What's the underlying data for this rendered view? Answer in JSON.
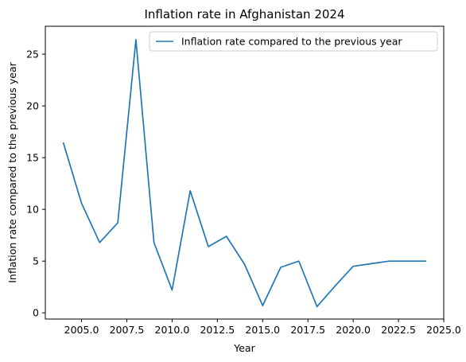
{
  "chart_data": {
    "type": "line",
    "title": "Inflation rate in Afghanistan 2024",
    "xlabel": "Year",
    "ylabel": "Inflation rate compared to the previous year",
    "xlim": [
      2003.0,
      2025.0
    ],
    "ylim": [
      -0.6,
      27.7
    ],
    "xticks": [
      2005.0,
      2007.5,
      2010.0,
      2012.5,
      2015.0,
      2017.5,
      2020.0,
      2022.5,
      2025.0
    ],
    "xtick_labels": [
      "2005.0",
      "2007.5",
      "2010.0",
      "2012.5",
      "2015.0",
      "2017.5",
      "2020.0",
      "2022.5",
      "2025.0"
    ],
    "yticks": [
      0,
      5,
      10,
      15,
      20,
      25
    ],
    "ytick_labels": [
      "0",
      "5",
      "10",
      "15",
      "20",
      "25"
    ],
    "grid": false,
    "legend_position": "top-right",
    "series": [
      {
        "name": "Inflation rate compared to the previous year",
        "color": "#1f77b4",
        "x": [
          2004,
          2005,
          2006,
          2007,
          2008,
          2009,
          2010,
          2011,
          2012,
          2013,
          2014,
          2015,
          2016,
          2017,
          2018,
          2019,
          2020,
          2021,
          2022,
          2023,
          2024
        ],
        "y": [
          16.4,
          10.6,
          6.8,
          8.7,
          26.4,
          6.8,
          2.2,
          11.8,
          6.4,
          7.4,
          4.7,
          0.7,
          4.4,
          5.0,
          0.6,
          2.6,
          4.5,
          4.75,
          5.0,
          5.0,
          5.0
        ]
      }
    ]
  }
}
